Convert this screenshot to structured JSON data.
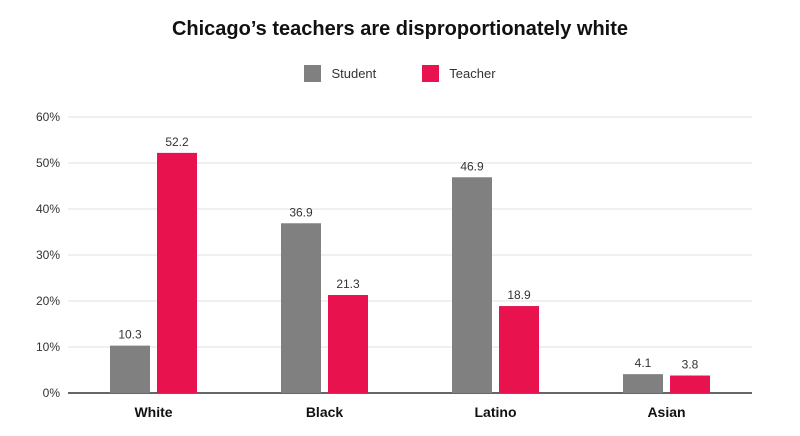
{
  "chart_data": {
    "type": "bar",
    "title": "Chicago’s teachers are disproportionately white",
    "categories": [
      "White",
      "Black",
      "Latino",
      "Asian"
    ],
    "series": [
      {
        "name": "Student",
        "values": [
          10.3,
          36.9,
          46.9,
          4.1
        ],
        "color": "#808080"
      },
      {
        "name": "Teacher",
        "values": [
          52.2,
          21.3,
          18.9,
          3.8
        ],
        "color": "#e8124e"
      }
    ],
    "ylim": [
      0,
      60
    ],
    "yticks": [
      "0%",
      "10%",
      "20%",
      "30%",
      "40%",
      "50%",
      "60%"
    ],
    "xlabel": "",
    "ylabel": "",
    "grid": true,
    "legend_position": "top-center"
  }
}
